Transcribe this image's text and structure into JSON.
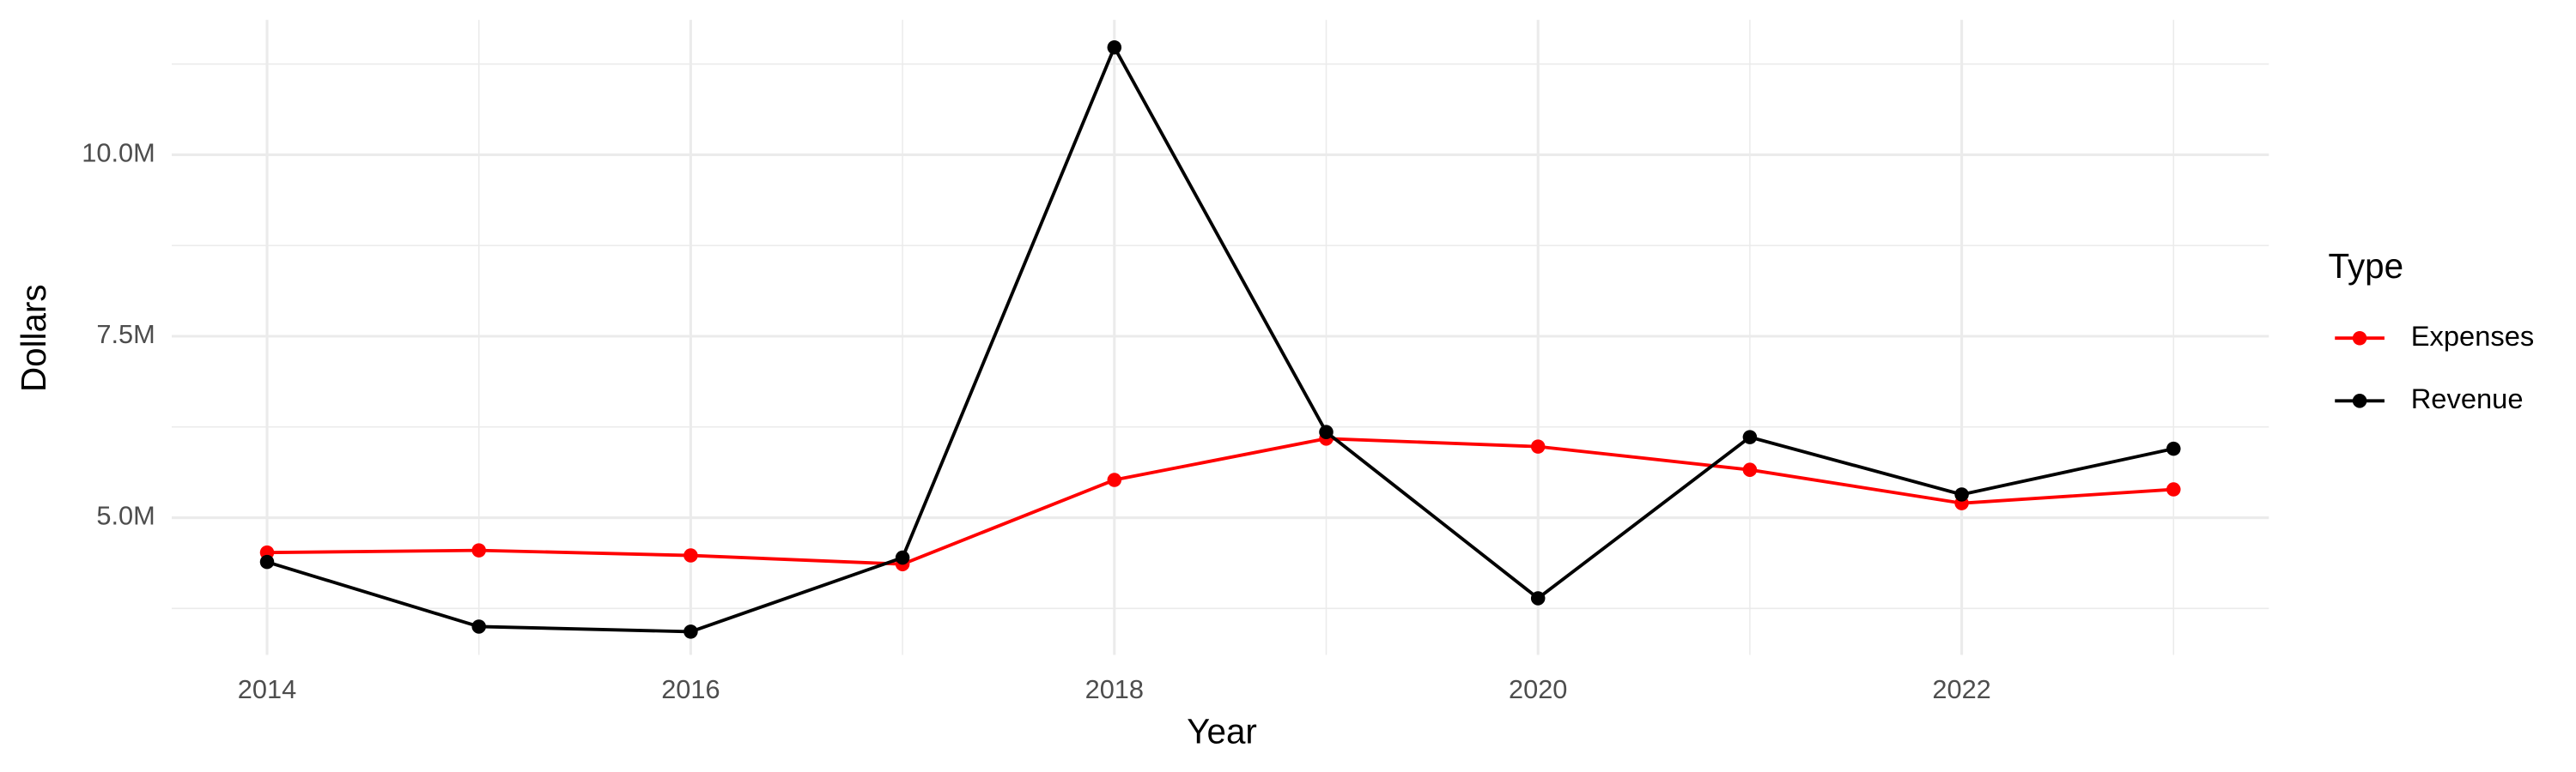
{
  "chart_data": {
    "type": "line",
    "x_label": "Year",
    "y_label": "Dollars",
    "x": [
      2014,
      2015,
      2016,
      2017,
      2018,
      2019,
      2020,
      2021,
      2022,
      2023
    ],
    "series": [
      {
        "name": "Expenses",
        "color": "#ff0000",
        "values": [
          4520000,
          4550000,
          4480000,
          4360000,
          5520000,
          6090000,
          5980000,
          5660000,
          5200000,
          5390000
        ]
      },
      {
        "name": "Revenue",
        "color": "#000000",
        "values": [
          4390000,
          3500000,
          3430000,
          4450000,
          11480000,
          6180000,
          3890000,
          6110000,
          5320000,
          5950000
        ]
      }
    ],
    "legend_title": "Type",
    "legend_position": "right",
    "xlim": [
      2013.55,
      2023.45
    ],
    "xticks": [
      2014,
      2016,
      2018,
      2020,
      2022
    ],
    "ylim": [
      3110000,
      11860000
    ],
    "yticks": [
      {
        "value": 5000000,
        "label": "5.0M"
      },
      {
        "value": 7500000,
        "label": "7.5M"
      },
      {
        "value": 10000000,
        "label": "10.0M"
      }
    ],
    "grid": true,
    "minor_grid": true
  }
}
